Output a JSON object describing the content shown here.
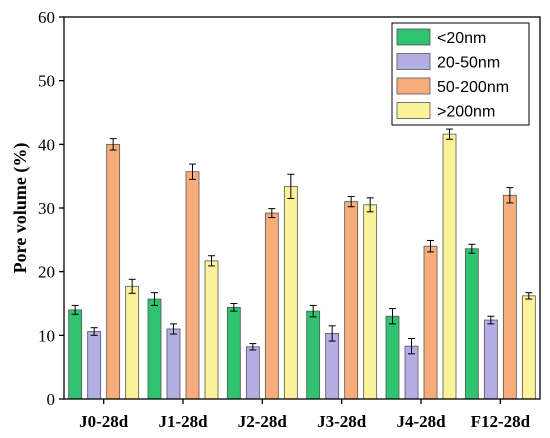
{
  "chart_data": {
    "type": "bar",
    "title": "",
    "xlabel": "",
    "ylabel": "Pore volume (%)",
    "ylim": [
      0,
      60
    ],
    "yticks": [
      0,
      10,
      20,
      30,
      40,
      50,
      60
    ],
    "grid": false,
    "legend_position": "top-right",
    "categories": [
      "J0-28d",
      "J1-28d",
      "J2-28d",
      "J3-28d",
      "J4-28d",
      "F12-28d"
    ],
    "series": [
      {
        "name": "<20nm",
        "color": "#2fc26f",
        "values": [
          14.0,
          15.7,
          14.4,
          13.8,
          13.0,
          23.6
        ],
        "errors": [
          0.7,
          1.0,
          0.6,
          0.9,
          1.2,
          0.7
        ]
      },
      {
        "name": "20-50nm",
        "color": "#b3aee4",
        "values": [
          10.6,
          11.0,
          8.2,
          10.3,
          8.3,
          12.4
        ],
        "errors": [
          0.6,
          0.8,
          0.5,
          1.2,
          1.2,
          0.6
        ]
      },
      {
        "name": "50-200nm",
        "color": "#f7ad7a",
        "values": [
          40.0,
          35.7,
          29.2,
          31.0,
          24.0,
          32.0
        ],
        "errors": [
          0.9,
          1.2,
          0.7,
          0.8,
          0.9,
          1.2
        ]
      },
      {
        "name": ">200nm",
        "color": "#fbf29a",
        "values": [
          17.7,
          21.7,
          33.4,
          30.5,
          41.6,
          16.2
        ],
        "errors": [
          1.1,
          0.8,
          1.9,
          1.1,
          0.8,
          0.5
        ]
      }
    ]
  }
}
